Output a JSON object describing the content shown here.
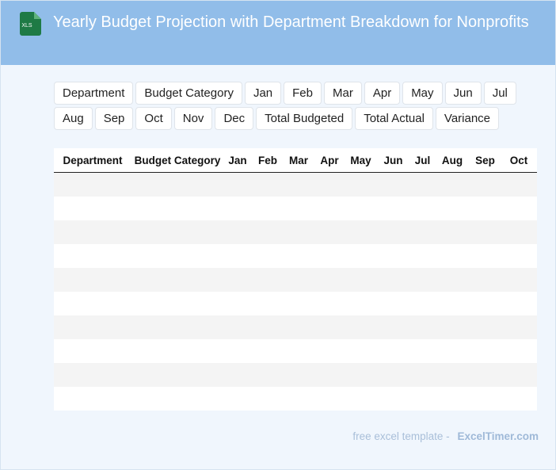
{
  "header": {
    "title": "Yearly Budget Projection with Department Breakdown for Nonprofits",
    "icon_label": "XLS",
    "background_color": "#91bde9",
    "icon_color": "#1e7a45"
  },
  "column_chips": [
    "Department",
    "Budget Category",
    "Jan",
    "Feb",
    "Mar",
    "Apr",
    "May",
    "Jun",
    "Jul",
    "Aug",
    "Sep",
    "Oct",
    "Nov",
    "Dec",
    "Total Budgeted",
    "Total Actual",
    "Variance"
  ],
  "table": {
    "headers": [
      "Department",
      "Budget Category",
      "Jan",
      "Feb",
      "Mar",
      "Apr",
      "May",
      "Jun",
      "Jul",
      "Aug",
      "Sep",
      "Oct"
    ],
    "rows": [
      [
        "",
        "",
        "",
        "",
        "",
        "",
        "",
        "",
        "",
        "",
        "",
        ""
      ],
      [
        "",
        "",
        "",
        "",
        "",
        "",
        "",
        "",
        "",
        "",
        "",
        ""
      ],
      [
        "",
        "",
        "",
        "",
        "",
        "",
        "",
        "",
        "",
        "",
        "",
        ""
      ],
      [
        "",
        "",
        "",
        "",
        "",
        "",
        "",
        "",
        "",
        "",
        "",
        ""
      ],
      [
        "",
        "",
        "",
        "",
        "",
        "",
        "",
        "",
        "",
        "",
        "",
        ""
      ],
      [
        "",
        "",
        "",
        "",
        "",
        "",
        "",
        "",
        "",
        "",
        "",
        ""
      ],
      [
        "",
        "",
        "",
        "",
        "",
        "",
        "",
        "",
        "",
        "",
        "",
        ""
      ],
      [
        "",
        "",
        "",
        "",
        "",
        "",
        "",
        "",
        "",
        "",
        "",
        ""
      ],
      [
        "",
        "",
        "",
        "",
        "",
        "",
        "",
        "",
        "",
        "",
        "",
        ""
      ],
      [
        "",
        "",
        "",
        "",
        "",
        "",
        "",
        "",
        "",
        "",
        "",
        ""
      ]
    ]
  },
  "footer": {
    "prefix": "free excel template -",
    "brand": "ExcelTimer.com"
  }
}
